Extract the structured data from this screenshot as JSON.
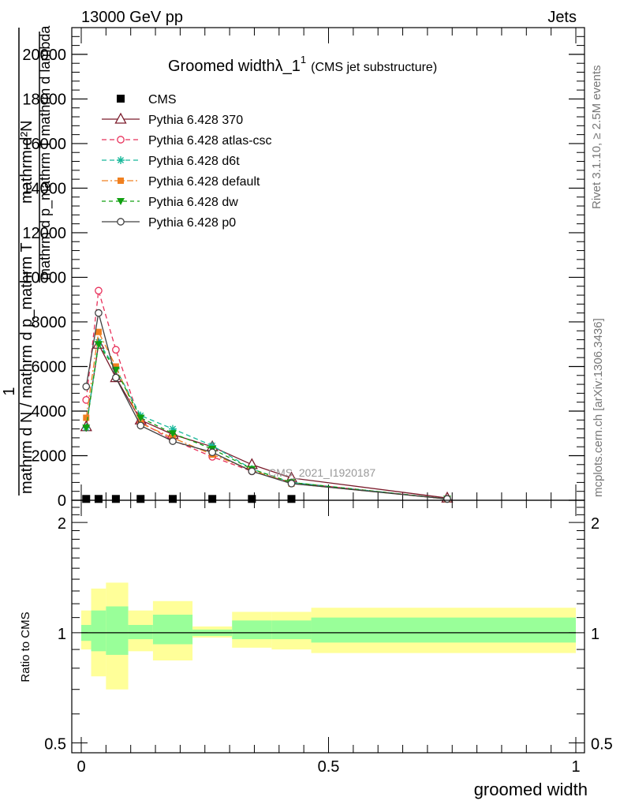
{
  "header": {
    "left": "13000 GeV pp",
    "right": "Jets"
  },
  "title": {
    "main": "Groomed widthλ_1",
    "sup": "1",
    "sub": "(CMS jet substructure)"
  },
  "side_labels": {
    "rivet": "Rivet 3.1.10, ≥ 2.5M events",
    "mcplots": "mcplots.cern.ch [arXiv:1306.3436]"
  },
  "watermark": "CMS_2021_I1920187",
  "ylabel_main": {
    "line1": "mathrm d²N",
    "line1b": "mathrm d p_mathrm T  mathrm d lambda",
    "one": "1",
    "line2": "mathrm d N / mathrm d p_mathrm T"
  },
  "ylabel_ratio": "Ratio to CMS",
  "xlabel": "groomed width",
  "colors": {
    "cms": "#000000",
    "p370": "#7a1a2a",
    "atlas": "#e8305a",
    "d6t": "#18b89a",
    "default": "#f08020",
    "dw": "#10a010",
    "p0": "#404040",
    "band_inner": "#99ff99",
    "band_outer": "#ffff99"
  },
  "chart_data": {
    "type": "line",
    "xlim": [
      0,
      1
    ],
    "ylim": [
      0,
      21200
    ],
    "ratio_ylim": [
      0.47,
      2.3
    ],
    "x_ticks": [
      "0",
      "0.5",
      "1"
    ],
    "y_ticks": [
      "0",
      "2000",
      "4000",
      "6000",
      "8000",
      "10000",
      "12000",
      "14000",
      "16000",
      "18000",
      "20000"
    ],
    "ratio_ticks": [
      "0.5",
      "1",
      "2"
    ],
    "x": [
      0.01,
      0.035,
      0.07,
      0.12,
      0.185,
      0.265,
      0.345,
      0.425,
      0.74
    ],
    "series": [
      {
        "name": "CMS",
        "key": "cms",
        "values": [
          60,
          60,
          60,
          60,
          60,
          60,
          60,
          60,
          0
        ]
      },
      {
        "name": "Pythia 6.428 370",
        "key": "p370",
        "values": [
          3300,
          7000,
          5500,
          3600,
          2950,
          2400,
          1600,
          1000,
          100
        ]
      },
      {
        "name": "Pythia 6.428 atlas-csc",
        "key": "atlas",
        "values": [
          4500,
          9400,
          6750,
          3500,
          2700,
          1950,
          1300,
          800,
          60
        ]
      },
      {
        "name": "Pythia 6.428 d6t",
        "key": "d6t",
        "values": [
          3250,
          7100,
          5900,
          3800,
          3200,
          2450,
          1400,
          800,
          60
        ]
      },
      {
        "name": "Pythia 6.428 default",
        "key": "default",
        "values": [
          3700,
          7550,
          6000,
          3450,
          2800,
          2050,
          1350,
          750,
          60
        ]
      },
      {
        "name": "Pythia 6.428 dw",
        "key": "dw",
        "values": [
          3250,
          7000,
          5850,
          3700,
          3000,
          2300,
          1400,
          800,
          60
        ]
      },
      {
        "name": "Pythia 6.428 p0",
        "key": "p0",
        "values": [
          5100,
          8400,
          5500,
          3350,
          2650,
          2150,
          1300,
          750,
          60
        ]
      }
    ],
    "ratio_bands": [
      {
        "x0": 0.0,
        "x1": 0.02,
        "inner_lo": 0.95,
        "inner_hi": 1.05,
        "outer_lo": 0.9,
        "outer_hi": 1.15
      },
      {
        "x0": 0.02,
        "x1": 0.05,
        "inner_lo": 0.89,
        "inner_hi": 1.15,
        "outer_lo": 0.76,
        "outer_hi": 1.32
      },
      {
        "x0": 0.05,
        "x1": 0.095,
        "inner_lo": 0.87,
        "inner_hi": 1.18,
        "outer_lo": 0.7,
        "outer_hi": 1.37
      },
      {
        "x0": 0.095,
        "x1": 0.145,
        "inner_lo": 0.96,
        "inner_hi": 1.05,
        "outer_lo": 0.89,
        "outer_hi": 1.15
      },
      {
        "x0": 0.145,
        "x1": 0.225,
        "inner_lo": 0.93,
        "inner_hi": 1.12,
        "outer_lo": 0.84,
        "outer_hi": 1.22
      },
      {
        "x0": 0.225,
        "x1": 0.305,
        "inner_lo": 0.98,
        "inner_hi": 1.02,
        "outer_lo": 0.97,
        "outer_hi": 1.04
      },
      {
        "x0": 0.305,
        "x1": 0.385,
        "inner_lo": 0.96,
        "inner_hi": 1.08,
        "outer_lo": 0.91,
        "outer_hi": 1.14
      },
      {
        "x0": 0.385,
        "x1": 0.465,
        "inner_lo": 0.96,
        "inner_hi": 1.08,
        "outer_lo": 0.9,
        "outer_hi": 1.14
      },
      {
        "x0": 0.465,
        "x1": 1.0,
        "inner_lo": 0.94,
        "inner_hi": 1.1,
        "outer_lo": 0.88,
        "outer_hi": 1.17
      }
    ],
    "legend_position": "top-left"
  }
}
